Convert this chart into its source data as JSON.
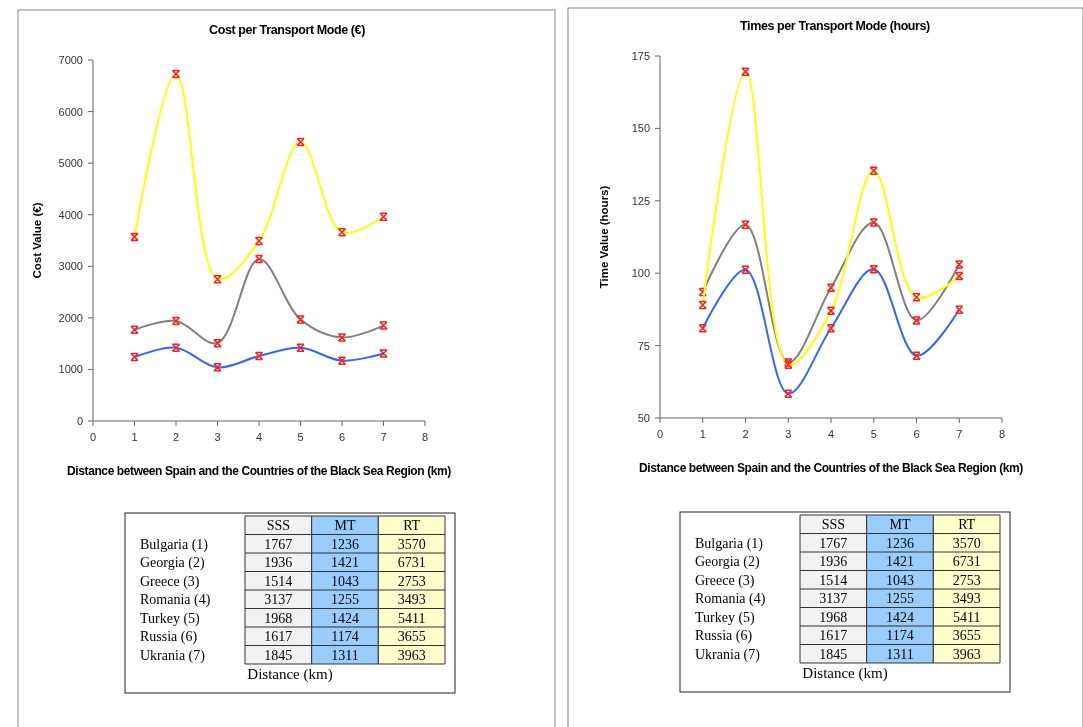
{
  "chart_data": [
    {
      "type": "line",
      "title": "Cost per Transport Mode (€)",
      "xlabel": "Distance between Spain and the Countries of the Black Sea Region (km)",
      "ylabel": "Cost Value (€)",
      "x": [
        1,
        2,
        3,
        4,
        5,
        6,
        7
      ],
      "xlim": [
        0,
        8
      ],
      "xticks": [
        0,
        1,
        2,
        3,
        4,
        5,
        6,
        7,
        8
      ],
      "ylim": [
        0,
        7000
      ],
      "yticks": [
        0,
        1000,
        2000,
        3000,
        4000,
        5000,
        6000,
        7000
      ],
      "marker": "cross",
      "series": [
        {
          "color": "#808080",
          "values": [
            1770,
            1940,
            1510,
            3140,
            1970,
            1620,
            1850
          ]
        },
        {
          "color": "#3366ff",
          "values": [
            1240,
            1420,
            1040,
            1260,
            1420,
            1170,
            1310
          ]
        },
        {
          "color": "#ffff00",
          "values": [
            3570,
            6730,
            2750,
            3490,
            5410,
            3660,
            3960
          ]
        }
      ]
    },
    {
      "type": "line",
      "title": "Times per Transport Mode (hours)",
      "xlabel": "Distance between Spain and the Countries of the Black Sea Region (km)",
      "ylabel": "Time  Value (hours)",
      "x": [
        1,
        2,
        3,
        4,
        5,
        6,
        7
      ],
      "xlim": [
        0,
        8
      ],
      "xticks": [
        0,
        1,
        2,
        3,
        4,
        5,
        6,
        7,
        8
      ],
      "ylim": [
        50,
        175
      ],
      "yticks": [
        50,
        75,
        100,
        125,
        150,
        175
      ],
      "marker": "cross",
      "series": [
        {
          "color": "#808080",
          "values": [
            93.5,
            116.7,
            69.2,
            95,
            117.5,
            83.7,
            103
          ]
        },
        {
          "color": "#3366ff",
          "values": [
            81,
            101.2,
            58.4,
            81,
            101.4,
            71.5,
            87.4
          ]
        },
        {
          "color": "#ffff00",
          "values": [
            89,
            169.6,
            68.4,
            87,
            135.4,
            91.7,
            99
          ]
        }
      ]
    },
    {
      "type": "other",
      "xlabel": "Distance (km)",
      "data_labels": true,
      "legend": "top",
      "categories": [
        "Bulgaria (1)",
        "Georgia (2)",
        "Greece (3)",
        "Romania (4)",
        "Turkey (5)",
        "Russia (6)",
        "Ukrania (7)"
      ],
      "series": [
        {
          "name": "SSS",
          "color": "#f2f2f2",
          "values": [
            1767,
            1936,
            1514,
            3137,
            1968,
            1617,
            1845
          ]
        },
        {
          "name": "MT",
          "color": "#99ccff",
          "values": [
            1236,
            1421,
            1043,
            1255,
            1424,
            1174,
            1311
          ]
        },
        {
          "name": "RT",
          "color": "#ffffcc",
          "values": [
            3570,
            6731,
            2753,
            3493,
            5411,
            3655,
            3963
          ]
        }
      ]
    },
    {
      "type": "other",
      "xlabel": "Distance (km)",
      "data_labels": true,
      "legend": "top",
      "categories": [
        "Bulgaria (1)",
        "Georgia (2)",
        "Greece (3)",
        "Romania (4)",
        "Turkey (5)",
        "Russia (6)",
        "Ukrania (7)"
      ],
      "series": [
        {
          "name": "SSS",
          "color": "#f2f2f2",
          "values": [
            1767,
            1936,
            1514,
            3137,
            1968,
            1617,
            1845
          ]
        },
        {
          "name": "MT",
          "color": "#99ccff",
          "values": [
            1236,
            1421,
            1043,
            1255,
            1424,
            1174,
            1311
          ]
        },
        {
          "name": "RT",
          "color": "#ffffcc",
          "values": [
            3570,
            6731,
            2753,
            3493,
            5411,
            3655,
            3963
          ]
        }
      ]
    }
  ]
}
